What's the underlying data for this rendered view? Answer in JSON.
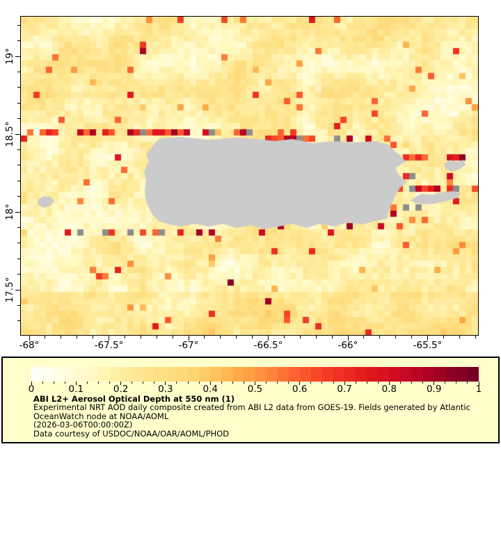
{
  "page": {
    "background": "#ffffff"
  },
  "map": {
    "x_axis": {
      "tick_values": [
        -68,
        -67.5,
        -67,
        -66.5,
        -66,
        -65.5
      ],
      "tick_labels": [
        "-68°",
        "-67.5°",
        "-67°",
        "-66.5°",
        "-66°",
        "-65.5°"
      ],
      "minor_tick_step": 0.1
    },
    "y_axis": {
      "tick_values": [
        19,
        18.5,
        18,
        17.5
      ],
      "tick_labels": [
        "19°",
        "18.5°",
        "18°",
        "17.5°"
      ],
      "minor_tick_step": 0.1
    },
    "land_color": "#cbcbcb",
    "land_edge_color": "#8d8d8d",
    "border_color": "#000000"
  },
  "colorbar": {
    "tick_values": [
      0,
      0.1,
      0.2,
      0.3,
      0.4,
      0.5,
      0.6,
      0.7,
      0.8,
      0.9,
      1
    ],
    "tick_labels": [
      "0",
      "0.1",
      "0.2",
      "0.3",
      "0.4",
      "0.5",
      "0.6",
      "0.7",
      "0.8",
      "0.9",
      "1"
    ],
    "minor_tick_step": 0.025,
    "num_blocks": 40,
    "colormap_stops": [
      [
        0.0,
        "#ffffff"
      ],
      [
        0.05,
        "#ffffe8"
      ],
      [
        0.1,
        "#fffcd4"
      ],
      [
        0.15,
        "#fff7bc"
      ],
      [
        0.2,
        "#ffeda0"
      ],
      [
        0.275,
        "#fee187"
      ],
      [
        0.35,
        "#fed976"
      ],
      [
        0.45,
        "#feb24c"
      ],
      [
        0.525,
        "#fd8d3c"
      ],
      [
        0.6,
        "#fc5b2e"
      ],
      [
        0.675,
        "#f03523"
      ],
      [
        0.75,
        "#e31a1c"
      ],
      [
        0.825,
        "#cc0a22"
      ],
      [
        0.9,
        "#a50026"
      ],
      [
        1.0,
        "#6d0022"
      ]
    ],
    "background": "#ffffcc"
  },
  "legend": {
    "background": "#ffffcc",
    "title": "ABI L2+ Aerosol Optical Depth at 550 nm (1)",
    "lines": [
      "Experimental NRT AOD daily composite created from ABI L2 data from GOES-19. Fields generated by Atlantic",
      "OceanWatch node at NOAA/AOML",
      "(2026-03-06T00:00:00Z)",
      "Data courtesy of USDOC/NOAA/OAR/AOML/PHOD"
    ]
  },
  "chart_data": {
    "type": "heatmap",
    "title": "ABI L2+ Aerosol Optical Depth at 550 nm (1)",
    "x_axis": {
      "range": [
        -68.05,
        -65.18
      ],
      "ticks": [
        -68,
        -67.5,
        -67,
        -66.5,
        -66,
        -65.5
      ],
      "unit": "degrees longitude"
    },
    "y_axis": {
      "range": [
        17.21,
        19.25
      ],
      "ticks": [
        19,
        18.5,
        18,
        17.5
      ],
      "unit": "degrees latitude"
    },
    "color_scale": {
      "range": [
        0,
        1
      ],
      "ticks": [
        0,
        0.1,
        0.2,
        0.3,
        0.4,
        0.5,
        0.6,
        0.7,
        0.8,
        0.9,
        1
      ],
      "label": "AOD at 550 nm"
    },
    "grid_on": false,
    "legend_position": "bottom panel",
    "description": "Gridded AOD cells (~0.04 deg) mostly 0.05-0.35, scattered cells 0.4-0.95; land areas (Puerto Rico, Mona, Vieques, Culebra) masked light gray with dark-gray and high-AOD red cells along coastlines"
  }
}
